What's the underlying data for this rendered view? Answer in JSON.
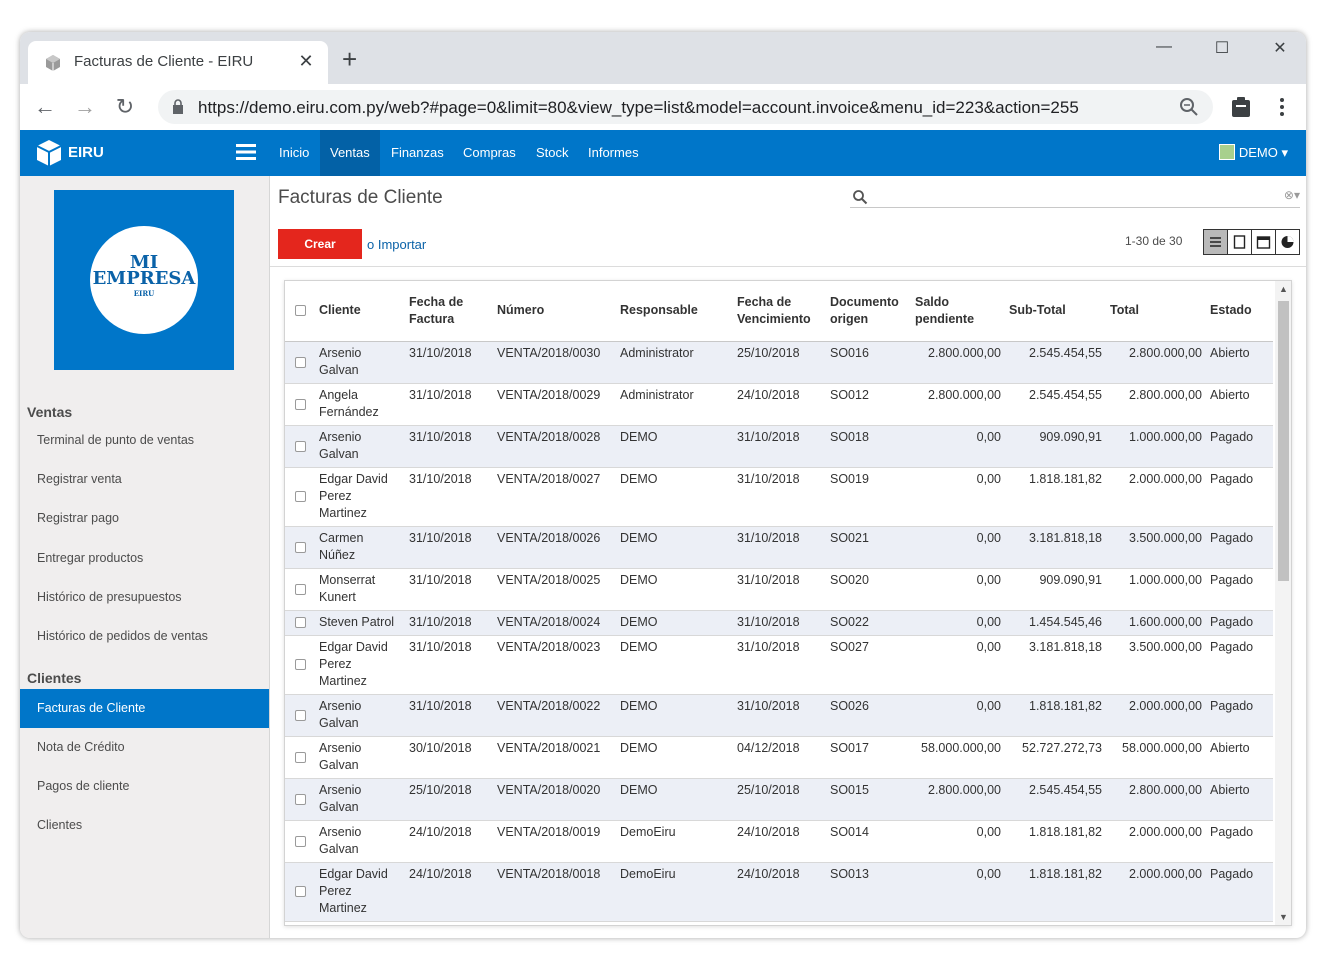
{
  "browser": {
    "tab_title": "Facturas de Cliente - EIRU",
    "url": "https://demo.eiru.com.py/web?#page=0&limit=80&view_type=list&model=account.invoice&menu_id=223&action=255"
  },
  "navbar": {
    "brand": "EIRU",
    "items": [
      "Inicio",
      "Ventas",
      "Finanzas",
      "Compras",
      "Stock",
      "Informes"
    ],
    "active": "Ventas",
    "user": "DEMO"
  },
  "company": {
    "line1": "MI",
    "line2": "EMPRESA",
    "line3": "EIRU"
  },
  "sidebar": {
    "ventas_title": "Ventas",
    "ventas_items": [
      "Terminal de punto de ventas",
      "Registrar venta",
      "Registrar pago",
      "Entregar productos",
      "Histórico de presupuestos",
      "Histórico de pedidos de ventas"
    ],
    "clientes_title": "Clientes",
    "clientes_items": [
      "Facturas de Cliente",
      "Nota de Crédito",
      "Pagos de cliente",
      "Clientes"
    ]
  },
  "main": {
    "title": "Facturas de Cliente",
    "create_label": "Crear",
    "import_label": "o Importar",
    "pager": "1-30 de 30"
  },
  "table": {
    "headers": [
      "Cliente",
      "Fecha de Factura",
      "Número",
      "Responsable",
      "Fecha de Vencimiento",
      "Documento origen",
      "Saldo pendiente",
      "Sub-Total",
      "Total",
      "Estado"
    ],
    "rows": [
      [
        "Arsenio Galvan",
        "31/10/2018",
        "VENTA/2018/0030",
        "Administrator",
        "25/10/2018",
        "SO016",
        "2.800.000,00",
        "2.545.454,55",
        "2.800.000,00",
        "Abierto"
      ],
      [
        "Angela Fernández",
        "31/10/2018",
        "VENTA/2018/0029",
        "Administrator",
        "24/10/2018",
        "SO012",
        "2.800.000,00",
        "2.545.454,55",
        "2.800.000,00",
        "Abierto"
      ],
      [
        "Arsenio Galvan",
        "31/10/2018",
        "VENTA/2018/0028",
        "DEMO",
        "31/10/2018",
        "SO018",
        "0,00",
        "909.090,91",
        "1.000.000,00",
        "Pagado"
      ],
      [
        "Edgar David Perez Martinez",
        "31/10/2018",
        "VENTA/2018/0027",
        "DEMO",
        "31/10/2018",
        "SO019",
        "0,00",
        "1.818.181,82",
        "2.000.000,00",
        "Pagado"
      ],
      [
        "Carmen Núñez",
        "31/10/2018",
        "VENTA/2018/0026",
        "DEMO",
        "31/10/2018",
        "SO021",
        "0,00",
        "3.181.818,18",
        "3.500.000,00",
        "Pagado"
      ],
      [
        "Monserrat Kunert",
        "31/10/2018",
        "VENTA/2018/0025",
        "DEMO",
        "31/10/2018",
        "SO020",
        "0,00",
        "909.090,91",
        "1.000.000,00",
        "Pagado"
      ],
      [
        "Steven Patrol",
        "31/10/2018",
        "VENTA/2018/0024",
        "DEMO",
        "31/10/2018",
        "SO022",
        "0,00",
        "1.454.545,46",
        "1.600.000,00",
        "Pagado"
      ],
      [
        "Edgar David Perez Martinez",
        "31/10/2018",
        "VENTA/2018/0023",
        "DEMO",
        "31/10/2018",
        "SO027",
        "0,00",
        "3.181.818,18",
        "3.500.000,00",
        "Pagado"
      ],
      [
        "Arsenio Galvan",
        "31/10/2018",
        "VENTA/2018/0022",
        "DEMO",
        "31/10/2018",
        "SO026",
        "0,00",
        "1.818.181,82",
        "2.000.000,00",
        "Pagado"
      ],
      [
        "Arsenio Galvan",
        "30/10/2018",
        "VENTA/2018/0021",
        "DEMO",
        "04/12/2018",
        "SO017",
        "58.000.000,00",
        "52.727.272,73",
        "58.000.000,00",
        "Abierto"
      ],
      [
        "Arsenio Galvan",
        "25/10/2018",
        "VENTA/2018/0020",
        "DEMO",
        "25/10/2018",
        "SO015",
        "2.800.000,00",
        "2.545.454,55",
        "2.800.000,00",
        "Abierto"
      ],
      [
        "Arsenio Galvan",
        "24/10/2018",
        "VENTA/2018/0019",
        "DemoEiru",
        "24/10/2018",
        "SO014",
        "0,00",
        "1.818.181,82",
        "2.000.000,00",
        "Pagado"
      ],
      [
        "Edgar David Perez Martinez",
        "24/10/2018",
        "VENTA/2018/0018",
        "DemoEiru",
        "24/10/2018",
        "SO013",
        "0,00",
        "1.818.181,82",
        "2.000.000,00",
        "Pagado"
      ]
    ]
  },
  "colors": {
    "primary": "#0076c9",
    "create": "#e4261d",
    "row_alt": "#eceff6"
  }
}
